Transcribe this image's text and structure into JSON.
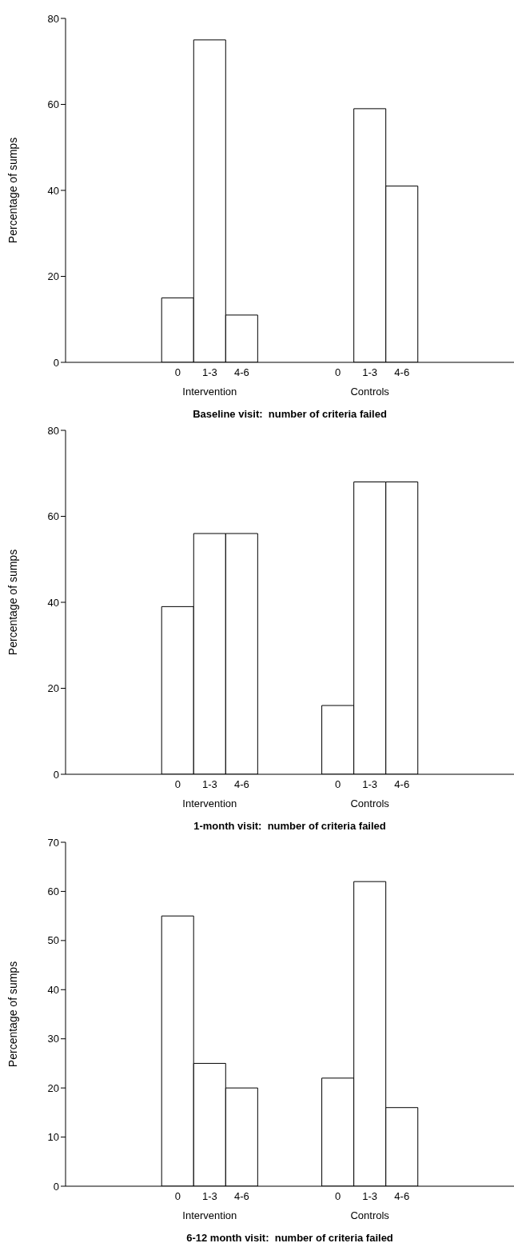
{
  "chart_data": [
    {
      "type": "bar",
      "xlabel": "Baseline visit:  number of criteria failed",
      "ylabel": "Percentage of sumps",
      "categories": [
        null,
        null,
        null,
        "0",
        "1-3",
        "4-6",
        null,
        null,
        "0",
        "1-3",
        "4-6",
        null,
        null,
        null
      ],
      "values": [
        null,
        null,
        null,
        15,
        75,
        11,
        null,
        null,
        0,
        59,
        41,
        null,
        null,
        null
      ],
      "color": "#ffffff",
      "ylim": [
        0,
        80
      ],
      "yticks": [
        0,
        20,
        40,
        60,
        80
      ],
      "annotations": [
        "Intervention",
        "Controls"
      ]
    },
    {
      "type": "bar",
      "xlabel": "1-month visit:  number of criteria failed",
      "ylabel": "Percentage of sumps",
      "categories": [
        null,
        null,
        null,
        "0",
        "1-3",
        "4-6",
        null,
        null,
        "0",
        "1-3",
        "4-6",
        null,
        null,
        null
      ],
      "values": [
        null,
        null,
        null,
        39,
        56,
        56,
        null,
        null,
        16,
        68,
        68,
        null,
        null,
        null
      ],
      "color": "#ffffff",
      "ylim": [
        0,
        80
      ],
      "yticks": [
        0,
        20,
        40,
        60,
        80
      ],
      "annotations": [
        "Intervention",
        "Controls"
      ]
    },
    {
      "type": "bar",
      "xlabel": "6-12 month visit:  number of criteria failed",
      "ylabel": "Percentage of sumps",
      "categories": [
        null,
        null,
        null,
        "0",
        "1-3",
        "4-6",
        null,
        null,
        "0",
        "1-3",
        "4-6",
        null,
        null,
        null
      ],
      "values": [
        null,
        null,
        null,
        55,
        25,
        20,
        null,
        null,
        22,
        62,
        16,
        null,
        null,
        null
      ],
      "color": "#ffffff",
      "ylim": [
        0,
        70
      ],
      "yticks": [
        0,
        10,
        20,
        30,
        40,
        50,
        60,
        70
      ],
      "annotations": [
        "Intervention",
        "Controls"
      ]
    }
  ]
}
